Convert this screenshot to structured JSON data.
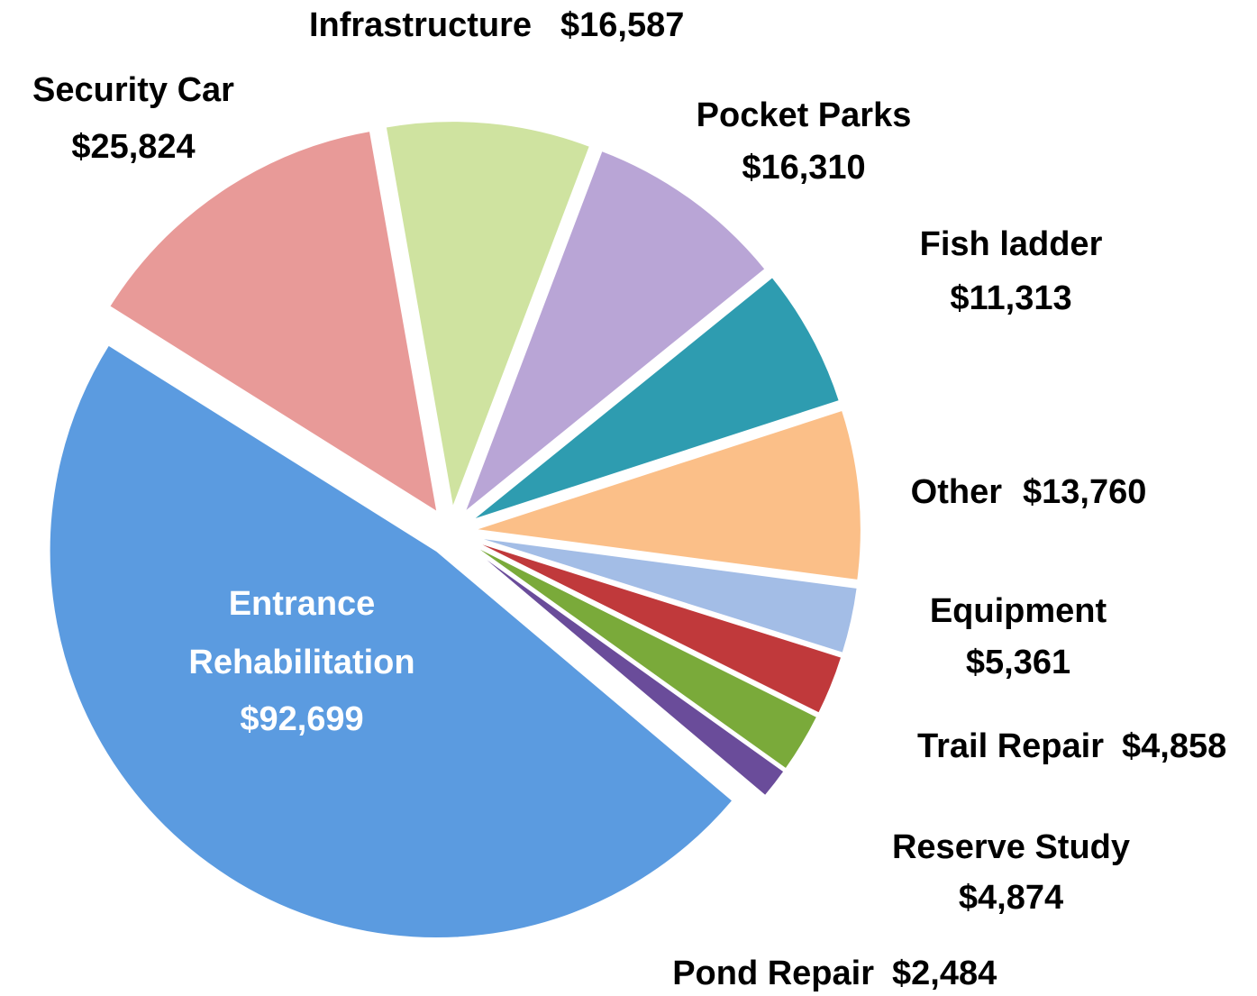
{
  "chart_data": {
    "type": "pie",
    "categories": [
      "Infrastructure",
      "Pocket Parks",
      "Fish ladder",
      "Other",
      "Equipment",
      "Trail Repair",
      "Reserve Study",
      "Pond Repair",
      "Entrance Rehabilitation",
      "Security Car"
    ],
    "values": [
      16587,
      16310,
      11313,
      13760,
      5361,
      4858,
      4874,
      2484,
      92699,
      25824
    ],
    "value_labels": [
      "$16,587",
      "$16,310",
      "$11,313",
      "$13,760",
      "$5,361",
      "$4,858",
      "$4,874",
      "$2,484",
      "$92,699",
      "$25,824"
    ],
    "colors": [
      "#cfe3a0",
      "#b9a5d6",
      "#2e9cb0",
      "#fbbf88",
      "#a3bde6",
      "#c0393b",
      "#7aaa3a",
      "#6a4c9a",
      "#5b9be0",
      "#e89a98"
    ]
  }
}
